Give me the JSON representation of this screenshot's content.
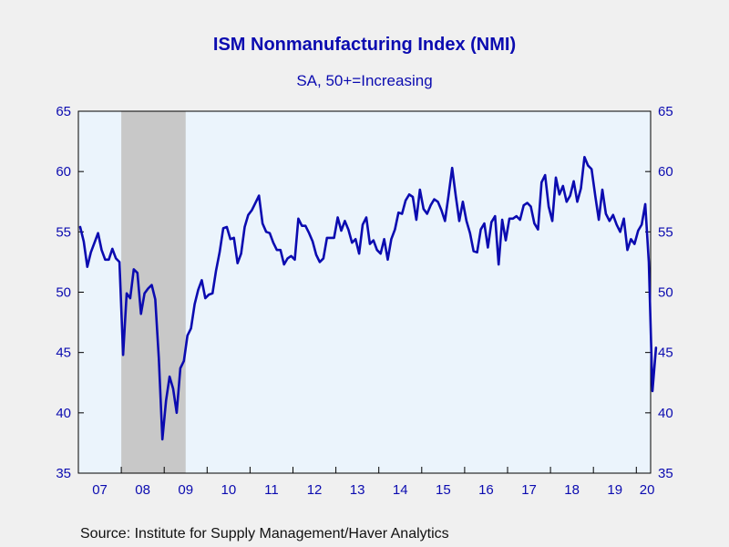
{
  "chart_data": {
    "type": "line",
    "title": "ISM Nonmanufacturing Index (NMI)",
    "subtitle": "SA, 50+=Increasing",
    "source": "Source:  Institute for Supply Management/Haver Analytics",
    "xlabel": "",
    "ylabel": "",
    "ylim": [
      35,
      65
    ],
    "yticks": [
      35,
      40,
      45,
      50,
      55,
      60,
      65
    ],
    "x_start": "2007-01",
    "x_end": "2020-04",
    "xtick_labels": [
      "07",
      "08",
      "09",
      "10",
      "11",
      "12",
      "13",
      "14",
      "15",
      "16",
      "17",
      "18",
      "19",
      "20"
    ],
    "recession_shading": {
      "start": "2008-01",
      "end": "2009-06"
    },
    "line_color": "#0b0bb0",
    "plot_background": "#ebf4fc",
    "recession_color": "#c8c8c8",
    "series": [
      {
        "values": [
          55.4,
          54.2,
          52.1,
          53.3,
          54.1,
          54.9,
          53.5,
          52.7,
          52.7,
          53.6,
          52.8,
          52.5,
          44.8,
          49.9,
          49.5,
          51.9,
          51.6,
          48.2,
          49.9,
          50.3,
          50.6,
          49.4,
          44.5,
          37.8,
          41.0,
          43.0,
          42.0,
          40.0,
          43.7,
          44.3,
          46.4,
          47.0,
          49.0,
          50.2,
          51.0,
          49.5,
          49.8,
          49.9,
          51.8,
          53.3,
          55.3,
          55.4,
          54.4,
          54.5,
          52.4,
          53.2,
          55.4,
          56.4,
          56.8,
          57.4,
          58.0,
          55.7,
          55.0,
          54.9,
          54.1,
          53.5,
          53.5,
          52.3,
          52.8,
          53.0,
          52.7,
          56.1,
          55.5,
          55.5,
          54.9,
          54.2,
          53.1,
          52.5,
          52.8,
          54.5,
          54.5,
          54.5,
          56.2,
          55.1,
          55.9,
          55.2,
          54.1,
          54.4,
          53.2,
          55.6,
          56.2,
          54.0,
          54.3,
          53.5,
          53.2,
          54.4,
          52.7,
          54.4,
          55.2,
          56.6,
          56.5,
          57.6,
          58.1,
          57.9,
          56.0,
          58.5,
          56.9,
          56.5,
          57.2,
          57.7,
          57.5,
          56.8,
          55.9,
          58.0,
          60.3,
          58.0,
          55.9,
          57.5,
          55.9,
          54.9,
          53.4,
          53.3,
          55.2,
          55.7,
          53.7,
          55.8,
          56.3,
          52.3,
          56.0,
          54.3,
          56.1,
          56.1,
          56.3,
          56.0,
          57.2,
          57.4,
          57.1,
          55.7,
          55.2,
          59.1,
          59.7,
          57.1,
          55.9,
          59.5,
          58.1,
          58.8,
          57.5,
          58.0,
          59.2,
          57.5,
          58.6,
          61.2,
          60.5,
          60.2,
          58.0,
          56.0,
          58.5,
          56.5,
          55.9,
          56.4,
          55.6,
          55.0,
          56.1,
          53.5,
          54.4,
          54.0,
          55.1,
          55.6,
          57.3,
          52.5,
          41.8,
          45.4
        ]
      }
    ]
  }
}
